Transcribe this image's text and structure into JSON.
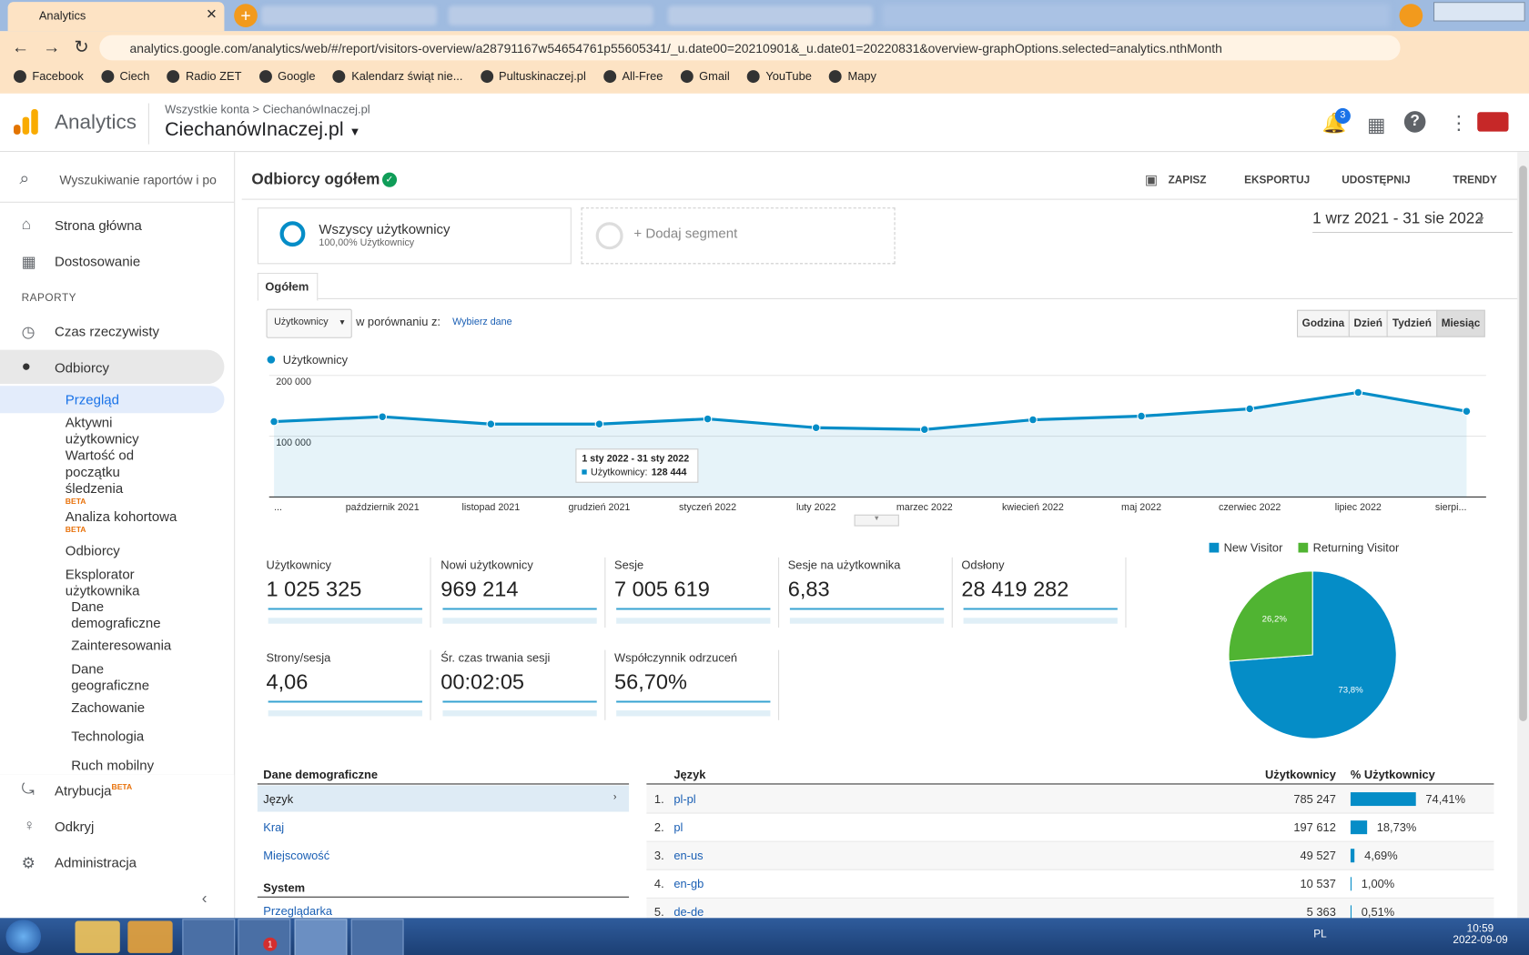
{
  "browser": {
    "tab": "Analytics",
    "url": "analytics.google.com/analytics/web/#/report/visitors-overview/a28791167w54654761p55605341/_u.date00=20210901&_u.date01=20220831&overview-graphOptions.selected=analytics.nthMonth",
    "bookmarks": [
      "Facebook",
      "Ciech",
      "Radio ZET",
      "Google",
      "Kalendarz świąt nie...",
      "Pultuskinaczej.pl",
      "All-Free",
      "Gmail",
      "YouTube",
      "Mapy"
    ]
  },
  "header": {
    "app": "Analytics",
    "breadcrumb": [
      "Wszystkie konta",
      ">",
      "CiechanówInaczej.pl"
    ],
    "property": "CiechanówInaczej.pl",
    "notifications": "3"
  },
  "sidebar": {
    "search": "Wyszukiwanie raportów i po",
    "top": [
      "Strona główna",
      "Dostosowanie"
    ],
    "section": "RAPORTY",
    "reports": [
      "Czas rzeczywisty",
      "Odbiorcy"
    ],
    "sub": [
      "Przegląd",
      "Aktywni użytkownicy",
      "Wartość od początku śledzenia",
      "Analiza kohortowa",
      "Odbiorcy",
      "Eksplorator użytkownika",
      "Dane demograficzne",
      "Zainteresowania",
      "Dane geograficzne",
      "Zachowanie",
      "Technologia",
      "Ruch mobilny"
    ],
    "beta": "BETA",
    "bottom": [
      "Atrybucja",
      "Odkryj",
      "Administracja"
    ]
  },
  "report": {
    "title": "Odbiorcy ogółem",
    "actions": [
      "ZAPISZ",
      "EKSPORTUJ",
      "UDOSTĘPNIJ",
      "TRENDY"
    ],
    "segment": "Wszyscy użytkownicy",
    "segment_sub": "100,00% Użytkownicy",
    "add_segment": "+ Dodaj segment",
    "date_range": "1 wrz 2021 - 31 sie 2022",
    "tab": "Ogółem",
    "metric_select": "Użytkownicy",
    "compare": "w porównaniu z:",
    "choose": "Wybierz dane",
    "granularity": [
      "Godzina",
      "Dzień",
      "Tydzień",
      "Miesiąc"
    ]
  },
  "chart_data": [
    {
      "type": "line",
      "categories": [
        "...",
        "październik 2021",
        "listopad 2021",
        "grudzień 2021",
        "styczeń 2022",
        "luty 2022",
        "marzec 2022",
        "kwiecień 2022",
        "maj 2022",
        "czerwiec 2022",
        "lipiec 2022",
        "sierpi..."
      ],
      "series": [
        {
          "name": "Użytkownicy",
          "color": "#058dc7",
          "values": [
            124000,
            132000,
            120000,
            120000,
            128444,
            114000,
            111000,
            127000,
            133000,
            145000,
            172000,
            141000
          ]
        }
      ],
      "ylim": [
        0,
        210000
      ],
      "yticks": [
        {
          "value": 100000,
          "label": "100 000"
        },
        {
          "value": 200000,
          "label": "200 000"
        }
      ],
      "grid": true,
      "tooltip": {
        "title": "1 sty 2022 - 31 sty 2022",
        "label": "Użytkownicy:",
        "value": "128 444"
      }
    },
    {
      "type": "pie",
      "categories": [
        "New Visitor",
        "Returning Visitor"
      ],
      "values": [
        73.8,
        26.2
      ],
      "value_labels": [
        "73,8%",
        "26,2%"
      ],
      "colors": [
        "#058dc7",
        "#50b432"
      ]
    }
  ],
  "metrics": [
    {
      "label": "Użytkownicy",
      "value": "1 025 325"
    },
    {
      "label": "Nowi użytkownicy",
      "value": "969 214"
    },
    {
      "label": "Sesje",
      "value": "7 005 619"
    },
    {
      "label": "Sesje na użytkownika",
      "value": "6,83"
    },
    {
      "label": "Odsłony",
      "value": "28 419 282"
    },
    {
      "label": "Strony/sesja",
      "value": "4,06"
    },
    {
      "label": "Śr. czas trwania sesji",
      "value": "00:02:05"
    },
    {
      "label": "Współczynnik odrzuceń",
      "value": "56,70%"
    }
  ],
  "table": {
    "left_title": "Dane demograficzne",
    "left_items": [
      "Język",
      "Kraj",
      "Miejscowość"
    ],
    "system_title": "System",
    "system_items": [
      "Przeglądarka"
    ],
    "headers": [
      "Język",
      "Użytkownicy",
      "% Użytkownicy"
    ],
    "rows": [
      {
        "rank": "1.",
        "name": "pl-pl",
        "users": "785 247",
        "share": 74.41,
        "share_label": "74,41%"
      },
      {
        "rank": "2.",
        "name": "pl",
        "users": "197 612",
        "share": 18.73,
        "share_label": "18,73%"
      },
      {
        "rank": "3.",
        "name": "en-us",
        "users": "49 527",
        "share": 4.69,
        "share_label": "4,69%"
      },
      {
        "rank": "4.",
        "name": "en-gb",
        "users": "10 537",
        "share": 1.0,
        "share_label": "1,00%"
      },
      {
        "rank": "5.",
        "name": "de-de",
        "users": "5 363",
        "share": 0.51,
        "share_label": "0,51%"
      }
    ]
  },
  "taskbar": {
    "badge": "1",
    "lang": "PL",
    "time": "10:59",
    "date": "2022-09-09"
  }
}
